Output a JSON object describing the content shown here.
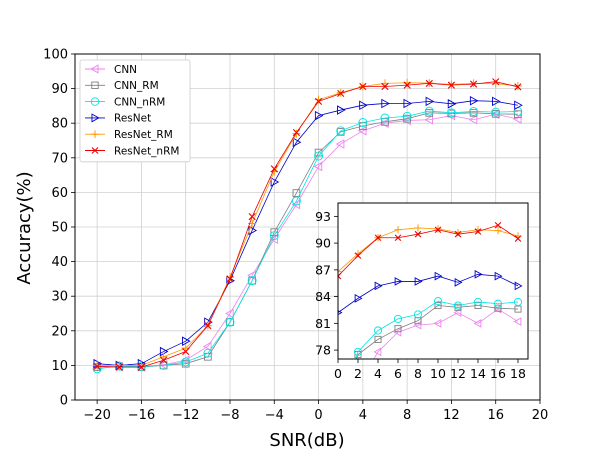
{
  "chart_data": [
    {
      "type": "line",
      "xlabel": "SNR(dB)",
      "ylabel": "Accuracy(%)",
      "xlim": [
        -22,
        20
      ],
      "ylim": [
        0,
        100
      ],
      "xticks": [
        -20,
        -16,
        -12,
        -8,
        -4,
        0,
        4,
        8,
        12,
        16,
        20
      ],
      "yticks": [
        0,
        10,
        20,
        30,
        40,
        50,
        60,
        70,
        80,
        90,
        100
      ],
      "grid": true,
      "legend_position": "top-left",
      "x": [
        -20,
        -18,
        -16,
        -14,
        -12,
        -10,
        -8,
        -6,
        -4,
        -2,
        0,
        2,
        4,
        6,
        8,
        10,
        12,
        14,
        16,
        18
      ],
      "series": [
        {
          "name": "CNN",
          "color": "#ee82ee",
          "marker": "triangle-left",
          "values": [
            9.8,
            9.6,
            9.6,
            10.2,
            11.5,
            15.5,
            25.0,
            36.0,
            46.5,
            56.5,
            67.5,
            74.0,
            77.8,
            80.0,
            80.8,
            81.0,
            82.2,
            81.0,
            82.6,
            81.2
          ]
        },
        {
          "name": "CNN_RM",
          "color": "#808080",
          "marker": "square",
          "values": [
            9.5,
            9.7,
            9.5,
            10.0,
            10.5,
            12.5,
            22.5,
            34.5,
            48.5,
            59.8,
            71.5,
            77.5,
            79.2,
            80.4,
            81.3,
            83.0,
            82.8,
            83.0,
            82.7,
            82.6
          ]
        },
        {
          "name": "CNN_nRM",
          "color": "#00e5e5",
          "marker": "circle",
          "values": [
            9.0,
            9.8,
            9.7,
            10.0,
            11.0,
            13.5,
            22.5,
            34.5,
            47.5,
            57.5,
            70.5,
            77.8,
            80.2,
            81.5,
            82.0,
            83.5,
            83.0,
            83.4,
            83.2,
            83.4
          ]
        },
        {
          "name": "ResNet",
          "color": "#0000cc",
          "marker": "triangle-right",
          "values": [
            10.5,
            10.0,
            10.5,
            14.0,
            17.0,
            22.5,
            34.5,
            49.0,
            63.0,
            74.5,
            82.2,
            83.8,
            85.2,
            85.7,
            85.7,
            86.3,
            85.6,
            86.5,
            86.3,
            85.2
          ]
        },
        {
          "name": "ResNet_RM",
          "color": "#ff9900",
          "marker": "plus",
          "values": [
            10.0,
            10.0,
            10.0,
            12.5,
            15.0,
            21.5,
            35.5,
            51.0,
            66.0,
            77.0,
            86.8,
            88.8,
            90.6,
            91.5,
            91.7,
            91.6,
            91.2,
            91.5,
            91.4,
            90.8
          ]
        },
        {
          "name": "ResNet_nRM",
          "color": "#ee0000",
          "marker": "x",
          "values": [
            9.7,
            9.5,
            9.5,
            11.5,
            14.0,
            21.5,
            35.0,
            53.0,
            66.8,
            77.3,
            86.3,
            88.6,
            90.6,
            90.6,
            91.0,
            91.5,
            91.0,
            91.3,
            92.0,
            90.5
          ]
        }
      ]
    },
    {
      "type": "line",
      "role": "inset",
      "xlim": [
        0,
        19
      ],
      "ylim": [
        77,
        94.5
      ],
      "xticks": [
        0,
        2,
        4,
        6,
        8,
        10,
        12,
        14,
        16,
        18
      ],
      "yticks": [
        78,
        81,
        84,
        87,
        90,
        93
      ],
      "grid": false,
      "series_source": "same as main plot, x >= 0"
    }
  ]
}
